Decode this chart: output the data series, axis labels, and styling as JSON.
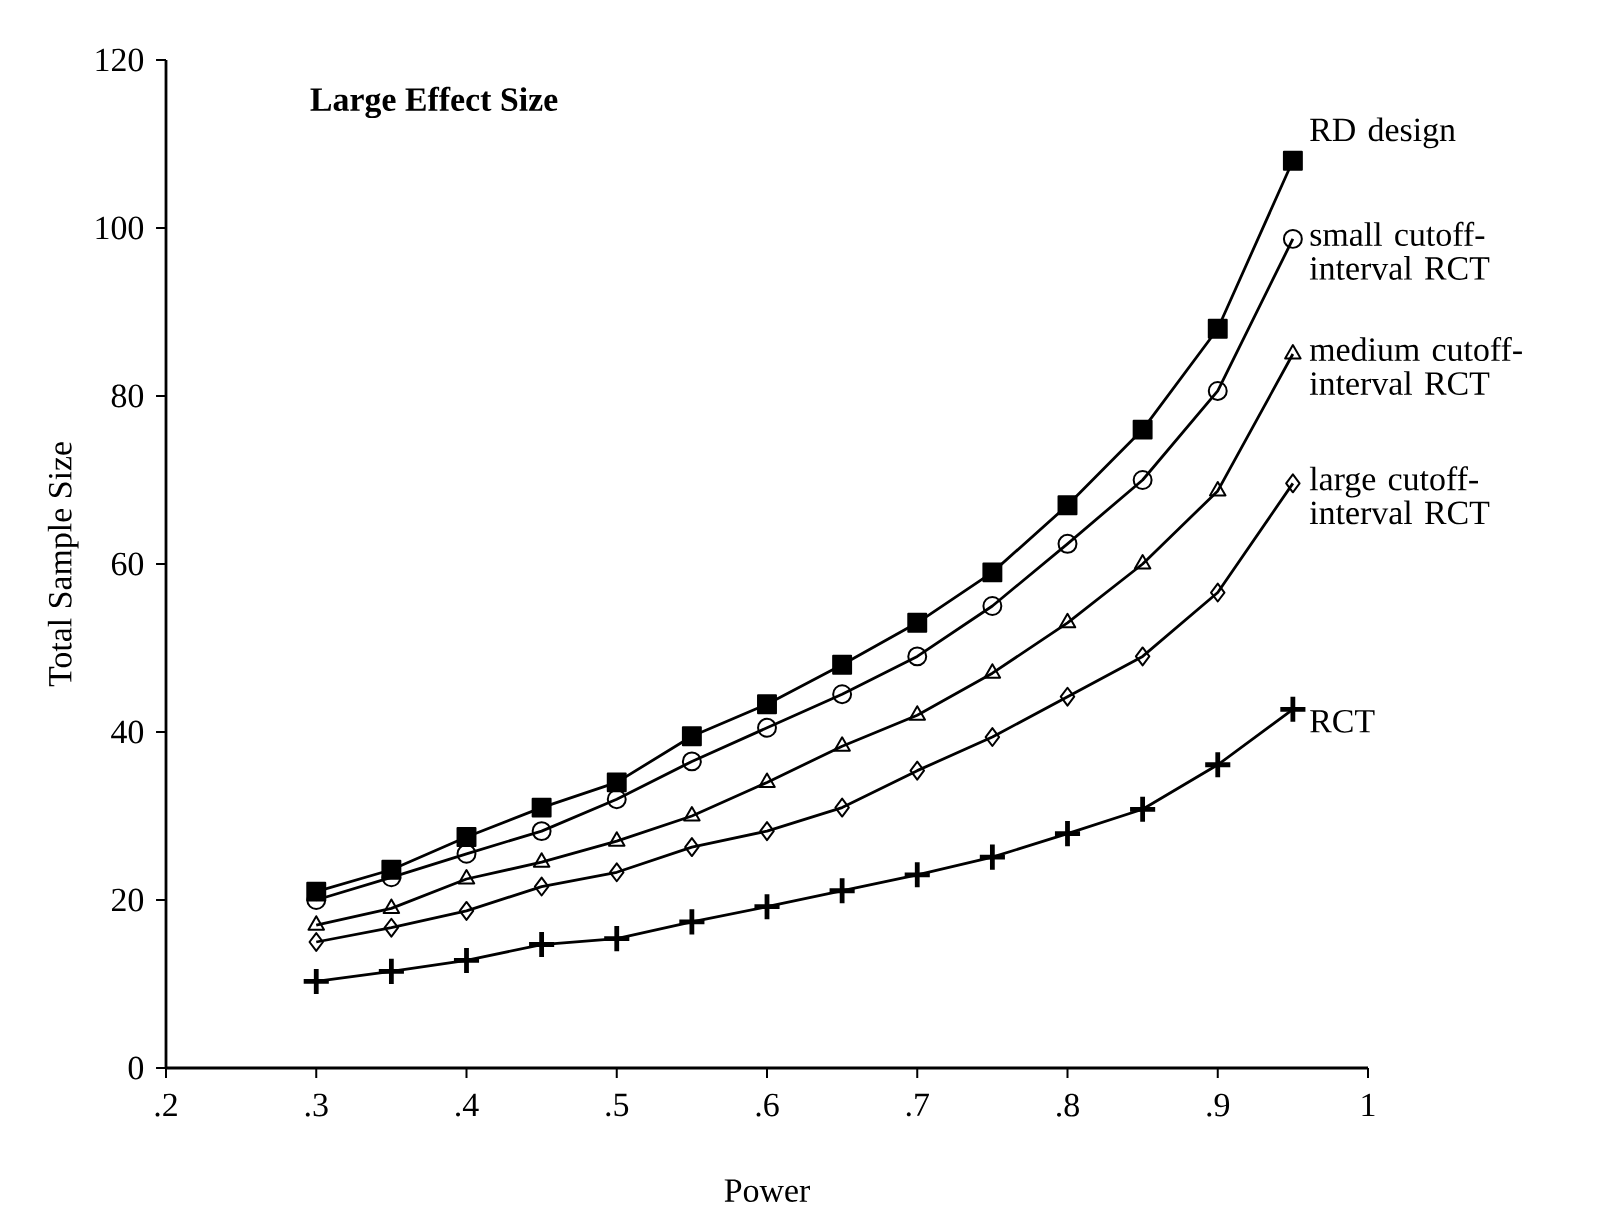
{
  "chart_data": {
    "type": "line",
    "title": "Large Effect Size",
    "xlabel": "Power",
    "ylabel": "Total Sample Size",
    "x": [
      0.3,
      0.35,
      0.4,
      0.45,
      0.5,
      0.55,
      0.6,
      0.65,
      0.7,
      0.75,
      0.8,
      0.85,
      0.9,
      0.95
    ],
    "xlim": [
      0.2,
      1
    ],
    "ylim": [
      0,
      120
    ],
    "xticks": [
      {
        "value": 0.2,
        "label": ".2"
      },
      {
        "value": 0.3,
        "label": ".3"
      },
      {
        "value": 0.4,
        "label": ".4"
      },
      {
        "value": 0.5,
        "label": ".5"
      },
      {
        "value": 0.6,
        "label": ".6"
      },
      {
        "value": 0.7,
        "label": ".7"
      },
      {
        "value": 0.8,
        "label": ".8"
      },
      {
        "value": 0.9,
        "label": ".9"
      },
      1
    ],
    "yticks": [
      0,
      20,
      40,
      60,
      80,
      100,
      120
    ],
    "grid": false,
    "legend": false,
    "line_style": "solid",
    "series": [
      {
        "name": "RD design",
        "color": "#000000",
        "marker": "square",
        "values": [
          21,
          23.6,
          27.5,
          31,
          34,
          39.5,
          43.3,
          48,
          53,
          59,
          67,
          76,
          88,
          108
        ]
      },
      {
        "name": "small cutoff-interval RCT",
        "color": "#000000",
        "marker": "circle",
        "values": [
          20,
          22.7,
          25.5,
          28.2,
          32,
          36.5,
          40.5,
          44.5,
          49,
          55,
          62.4,
          70,
          80.6,
          98.7
        ]
      },
      {
        "name": "medium cutoff-interval RCT",
        "color": "#000000",
        "marker": "triangle",
        "values": [
          17,
          19,
          22.5,
          24.5,
          27,
          30,
          34,
          38.3,
          42,
          47,
          53,
          60,
          68.7,
          85
        ]
      },
      {
        "name": "large cutoff-interval RCT",
        "color": "#000000",
        "marker": "diamond",
        "values": [
          15,
          16.7,
          18.7,
          21.6,
          23.3,
          26.3,
          28.2,
          31,
          35.4,
          39.4,
          44.2,
          49,
          56.6,
          69.6
        ]
      },
      {
        "name": "RCT",
        "color": "#000000",
        "marker": "cross",
        "values": [
          10.3,
          11.5,
          12.8,
          14.7,
          15.4,
          17.4,
          19.2,
          21.1,
          23,
          25.1,
          27.9,
          30.8,
          36.1,
          42.7
        ]
      }
    ]
  }
}
